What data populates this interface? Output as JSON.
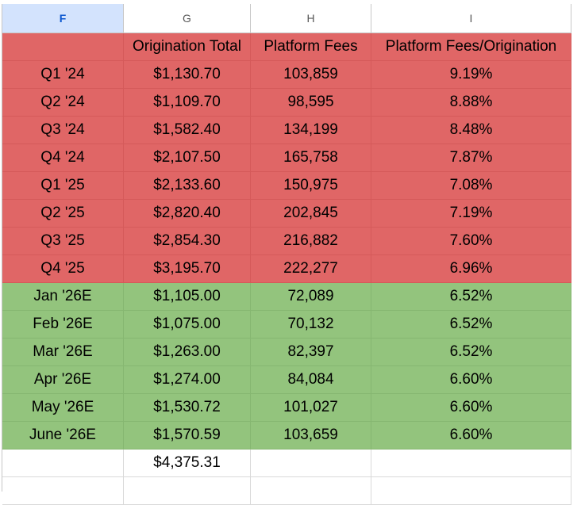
{
  "columns": [
    "F",
    "G",
    "H",
    "I"
  ],
  "selected_column": "F",
  "header_row": [
    "",
    "Origination Total",
    "Platform Fees",
    "Platform Fees/Origination"
  ],
  "rows": [
    {
      "period": "Q1 '24",
      "origination": "$1,130.70",
      "fees": "103,859",
      "ratio": "9.19%",
      "fill": "red"
    },
    {
      "period": "Q2 '24",
      "origination": "$1,109.70",
      "fees": "98,595",
      "ratio": "8.88%",
      "fill": "red"
    },
    {
      "period": "Q3 '24",
      "origination": "$1,582.40",
      "fees": "134,199",
      "ratio": "8.48%",
      "fill": "red"
    },
    {
      "period": "Q4 '24",
      "origination": "$2,107.50",
      "fees": "165,758",
      "ratio": "7.87%",
      "fill": "red"
    },
    {
      "period": "Q1 '25",
      "origination": "$2,133.60",
      "fees": "150,975",
      "ratio": "7.08%",
      "fill": "red"
    },
    {
      "period": "Q2 '25",
      "origination": "$2,820.40",
      "fees": "202,845",
      "ratio": "7.19%",
      "fill": "red"
    },
    {
      "period": "Q3 '25",
      "origination": "$2,854.30",
      "fees": "216,882",
      "ratio": "7.60%",
      "fill": "red"
    },
    {
      "period": "Q4 '25",
      "origination": "$3,195.70",
      "fees": "222,277",
      "ratio": "6.96%",
      "fill": "red"
    },
    {
      "period": "Jan '26E",
      "origination": "$1,105.00",
      "fees": "72,089",
      "ratio": "6.52%",
      "fill": "green"
    },
    {
      "period": "Feb '26E",
      "origination": "$1,075.00",
      "fees": "70,132",
      "ratio": "6.52%",
      "fill": "green"
    },
    {
      "period": "Mar '26E",
      "origination": "$1,263.00",
      "fees": "82,397",
      "ratio": "6.52%",
      "fill": "green"
    },
    {
      "period": "Apr '26E",
      "origination": "$1,274.00",
      "fees": "84,084",
      "ratio": "6.60%",
      "fill": "green"
    },
    {
      "period": "May '26E",
      "origination": "$1,530.72",
      "fees": "101,027",
      "ratio": "6.60%",
      "fill": "green"
    },
    {
      "period": "June '26E",
      "origination": "$1,570.59",
      "fees": "103,659",
      "ratio": "6.60%",
      "fill": "green"
    }
  ],
  "total_row": [
    "",
    "$4,375.31",
    "",
    ""
  ],
  "colors": {
    "red": "#e06666",
    "green": "#93c47d",
    "selected_header": "#d3e3fd",
    "selected_header_text": "#0b57d0"
  }
}
